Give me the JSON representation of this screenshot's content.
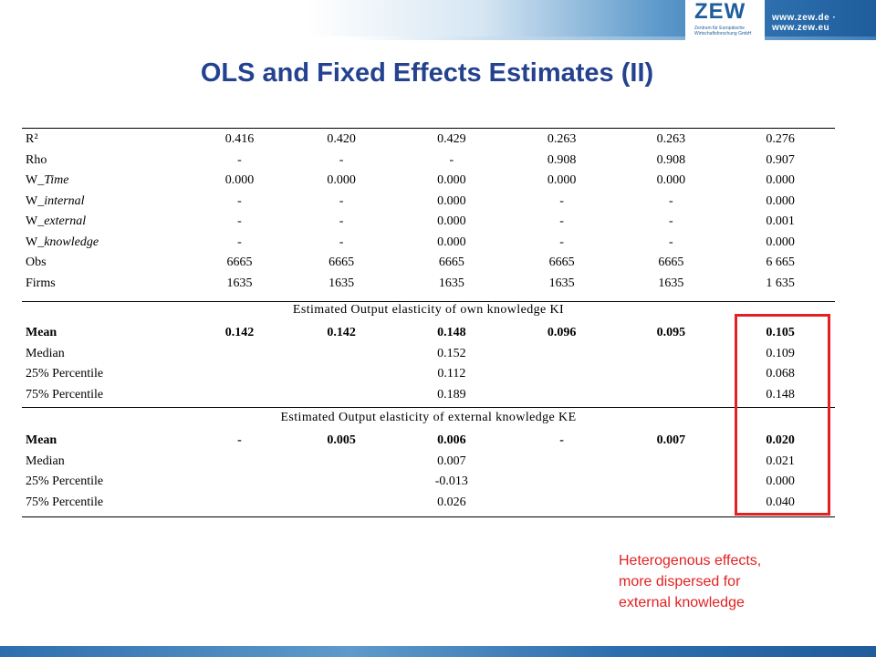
{
  "header": {
    "logo": "ZEW",
    "logo_sub": "Zentrum für Europäische Wirtschaftsforschung GmbH",
    "url": "www.zew.de · www.zew.eu"
  },
  "title": "OLS and Fixed Effects Estimates (II)",
  "stats_rows": [
    {
      "label": "R²",
      "values": [
        "0.416",
        "0.420",
        "0.429",
        "0.263",
        "0.263",
        "0.276"
      ]
    },
    {
      "label": "Rho",
      "values": [
        "-",
        "-",
        "-",
        "0.908",
        "0.908",
        "0.907"
      ]
    },
    {
      "label_prefix": "W_",
      "label_italic": "Time",
      "values": [
        "0.000",
        "0.000",
        "0.000",
        "0.000",
        "0.000",
        "0.000"
      ]
    },
    {
      "label_prefix": "W_",
      "label_italic": "internal",
      "values": [
        "-",
        "-",
        "0.000",
        "-",
        "-",
        "0.000"
      ]
    },
    {
      "label_prefix": "W_",
      "label_italic": "external",
      "values": [
        "-",
        "-",
        "0.000",
        "-",
        "-",
        "0.001"
      ]
    },
    {
      "label_prefix": "W_",
      "label_italic": "knowledge",
      "values": [
        "-",
        "-",
        "0.000",
        "-",
        "-",
        "0.000"
      ]
    },
    {
      "label": "Obs",
      "values": [
        "6665",
        "6665",
        "6665",
        "6665",
        "6665",
        "6 665"
      ]
    },
    {
      "label": "Firms",
      "values": [
        "1635",
        "1635",
        "1635",
        "1635",
        "1635",
        "1 635"
      ]
    }
  ],
  "section_ki": {
    "heading": "Estimated Output elasticity of own knowledge KI",
    "rows": [
      {
        "label": "Mean",
        "values": [
          "0.142",
          "0.142",
          "0.148",
          "0.096",
          "0.095",
          "0.105"
        ]
      },
      {
        "label": "Median",
        "values": [
          "",
          "",
          "0.152",
          "",
          "",
          "0.109"
        ]
      },
      {
        "label": "25% Percentile",
        "values": [
          "",
          "",
          "0.112",
          "",
          "",
          "0.068"
        ]
      },
      {
        "label": "75% Percentile",
        "values": [
          "",
          "",
          "0.189",
          "",
          "",
          "0.148"
        ]
      }
    ]
  },
  "section_ke": {
    "heading": "Estimated Output elasticity of external knowledge KE",
    "rows": [
      {
        "label": "Mean",
        "values": [
          "-",
          "0.005",
          "0.006",
          "-",
          "0.007",
          "0.020"
        ]
      },
      {
        "label": "Median",
        "values": [
          "",
          "",
          "0.007",
          "",
          "",
          "0.021"
        ]
      },
      {
        "label": "25% Percentile",
        "values": [
          "",
          "",
          "-0.013",
          "",
          "",
          "0.000"
        ]
      },
      {
        "label": "75% Percentile",
        "values": [
          "",
          "",
          "0.026",
          "",
          "",
          "0.040"
        ]
      }
    ]
  },
  "note": [
    "Heterogenous effects,",
    "more dispersed for",
    "external knowledge"
  ],
  "colors": {
    "title": "#24428f",
    "highlight": "#e32122",
    "brand": "#1f5d9c"
  }
}
